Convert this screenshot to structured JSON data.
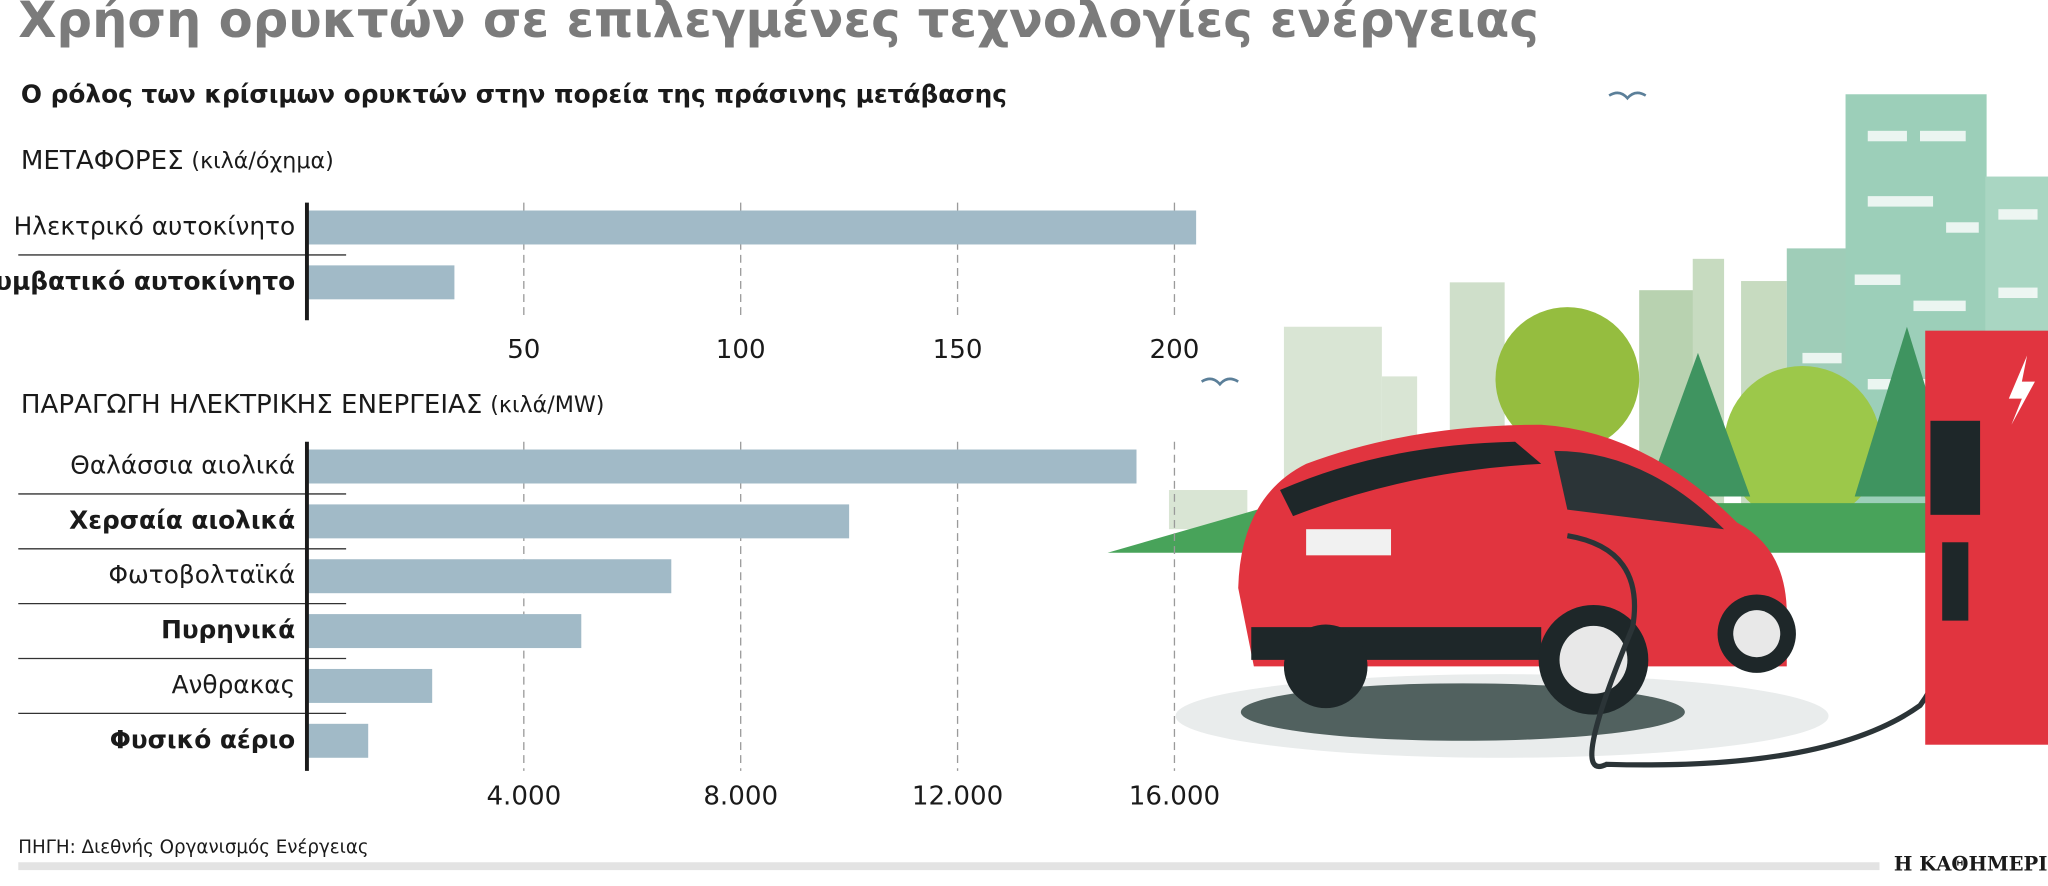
{
  "header": {
    "title": "Χρήση ορυκτών σε επιλεγμένες τεχνολογίες ενέργειας",
    "subtitle": "Ο ρόλος των κρίσιμων ορυκτών στην πορεία της πράσινης μετάβασης"
  },
  "chart_data": [
    {
      "type": "bar",
      "orientation": "horizontal",
      "title": "ΜΕΤΑΦΟΡΕΣ",
      "unit": "(κιλά/όχημα)",
      "categories": [
        "Ηλεκτρικό αυτοκίνητο",
        "Συμβατικό αυτοκίνητο"
      ],
      "values": [
        205,
        34
      ],
      "color": "#a1bac7",
      "xlim": [
        0,
        215
      ],
      "xticks": [
        50,
        100,
        150,
        200
      ],
      "grid": true
    },
    {
      "type": "bar",
      "orientation": "horizontal",
      "title": "ΠΑΡΑΓΩΓΗ ΗΛΕΚΤΡΙΚΗΣ ΕΝΕΡΓΕΙΑΣ",
      "unit": "(κιλά/MW)",
      "categories": [
        "Θαλάσσια αιολικά",
        "Χερσαία αιολικά",
        "Φωτοβολταϊκά",
        "Πυρηνικά",
        "Ανθρακας",
        "Φυσικό αέριο"
      ],
      "values": [
        15300,
        10000,
        6720,
        5060,
        2310,
        1130
      ],
      "color": "#a1bac7",
      "xlim": [
        0,
        17200
      ],
      "xticks": [
        {
          "value": 4000,
          "label": "4.000"
        },
        {
          "value": 8000,
          "label": "8.000"
        },
        {
          "value": 12000,
          "label": "12.000"
        },
        {
          "value": 16000,
          "label": "16.000"
        }
      ],
      "grid": true
    }
  ],
  "footer": {
    "source": "ΠΗΓΗ: Διεθνής Οργανισμός Ενέργειας",
    "brand": "Η ΚΑΘΗΜΕΡΙΝΗ"
  }
}
